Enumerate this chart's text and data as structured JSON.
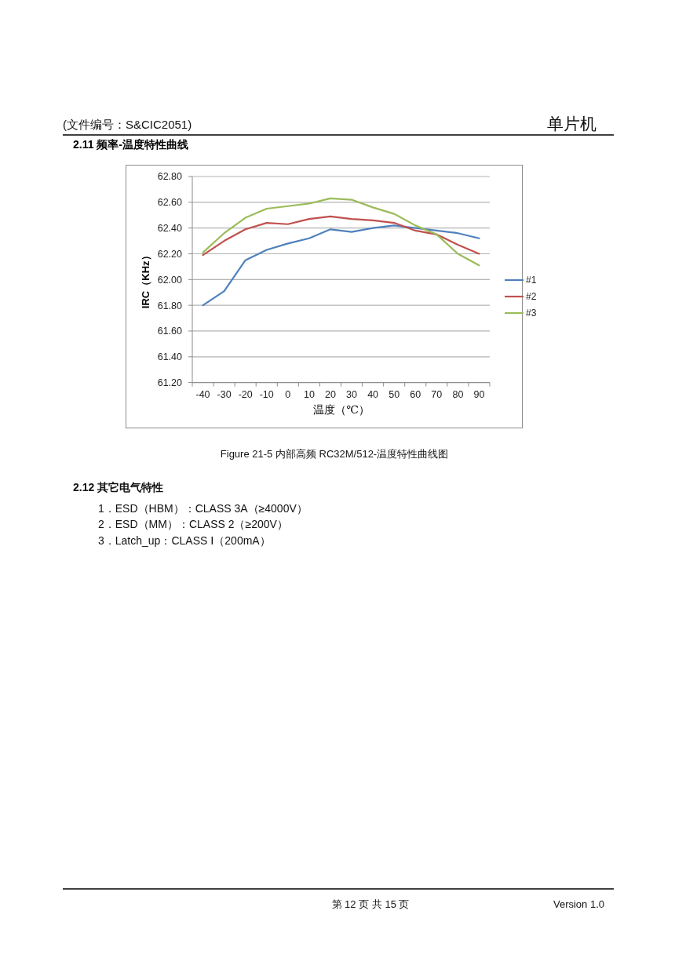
{
  "chart_data": {
    "type": "line",
    "title": "2.11 频率-温度特性曲线",
    "xlabel": "温度（℃）",
    "ylabel": "IRC（KHz）",
    "categories": [
      "-40",
      "-30",
      "-20",
      "-10",
      "0",
      "10",
      "20",
      "30",
      "40",
      "50",
      "60",
      "70",
      "80",
      "90"
    ],
    "series": [
      {
        "name": "#1",
        "color": "#4f81bd",
        "values": [
          61.8,
          61.91,
          62.15,
          62.23,
          62.28,
          62.32,
          62.39,
          62.37,
          62.4,
          62.42,
          62.4,
          62.38,
          62.36,
          62.32
        ]
      },
      {
        "name": "#2",
        "color": "#c0504d",
        "values": [
          62.19,
          62.3,
          62.39,
          62.44,
          62.43,
          62.47,
          62.49,
          62.47,
          62.46,
          62.44,
          62.38,
          62.35,
          62.27,
          62.2
        ]
      },
      {
        "name": "#3",
        "color": "#9bbb59",
        "values": [
          62.21,
          62.36,
          62.48,
          62.55,
          62.57,
          62.59,
          62.63,
          62.62,
          62.56,
          62.51,
          62.42,
          62.35,
          62.2,
          62.11
        ]
      }
    ],
    "ylim": [
      61.2,
      62.8
    ],
    "yticks": [
      {
        "value": 61.2,
        "label": "61.20"
      },
      {
        "value": 61.4,
        "label": "61.40"
      },
      {
        "value": 61.6,
        "label": "61.60"
      },
      {
        "value": 61.8,
        "label": "61.80"
      },
      {
        "value": 62.0,
        "label": "62.00"
      },
      {
        "value": 62.2,
        "label": "62.20"
      },
      {
        "value": 62.4,
        "label": "62.40"
      },
      {
        "value": 62.6,
        "label": "62.60"
      },
      {
        "value": 62.8,
        "label": "62.80"
      }
    ],
    "grid": "y",
    "legend": "right",
    "annotations": [
      "(文件编号：S&CIC2051)",
      "单片机",
      "Figure 21-5 内部高频 RC32M/512-温度特性曲线图",
      "2.12 其它电气特性",
      "1．ESD（HBM）：CLASS 3A（≥4000V）",
      "2．ESD（MM）：CLASS 2（≥200V）",
      "3．Latch_up：CLASS Ⅰ（200mA）",
      "第 12 页 共 15 页",
      "Version 1.0"
    ]
  }
}
